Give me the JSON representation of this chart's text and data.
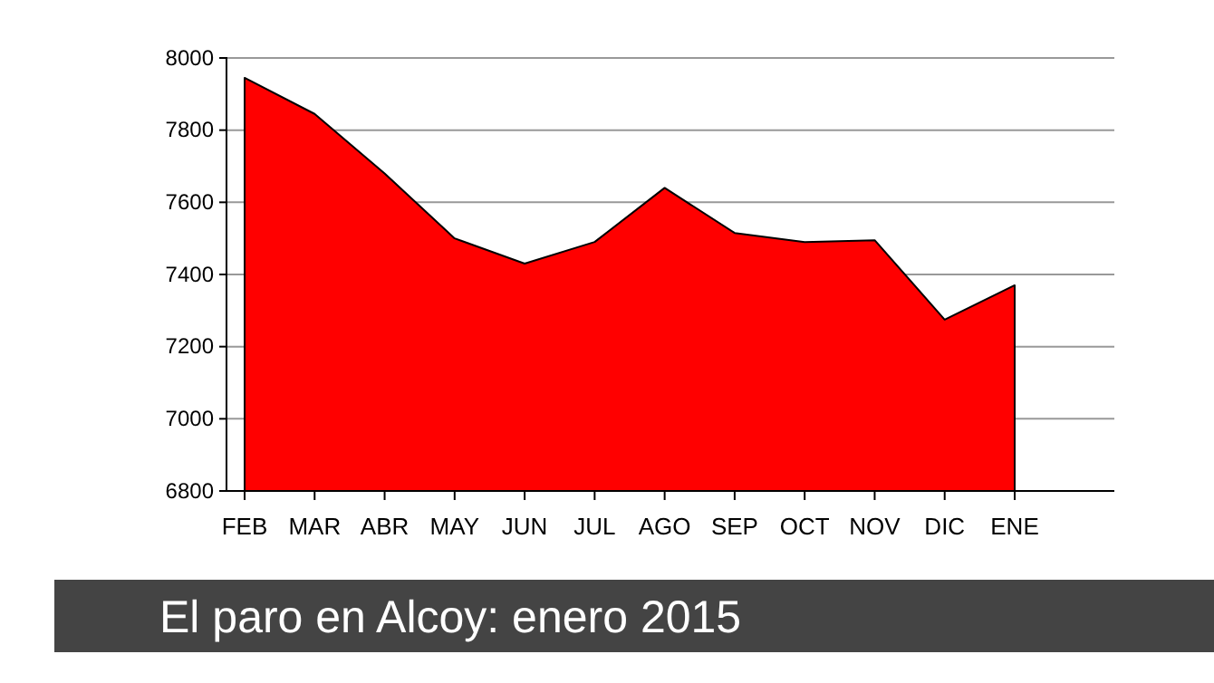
{
  "chart_data": {
    "type": "area",
    "title": "El paro en Alcoy: enero 2015",
    "categories": [
      "FEB",
      "MAR",
      "ABR",
      "MAY",
      "JUN",
      "JUL",
      "AGO",
      "SEP",
      "OCT",
      "NOV",
      "DIC",
      "ENE"
    ],
    "values": [
      7945,
      7845,
      7680,
      7500,
      7430,
      7490,
      7640,
      7515,
      7490,
      7495,
      7275,
      7370
    ],
    "color": "#ff0000",
    "ylim": [
      6800,
      8000
    ],
    "yticks": [
      6800,
      7000,
      7200,
      7400,
      7600,
      7800,
      8000
    ],
    "grid": "y"
  }
}
